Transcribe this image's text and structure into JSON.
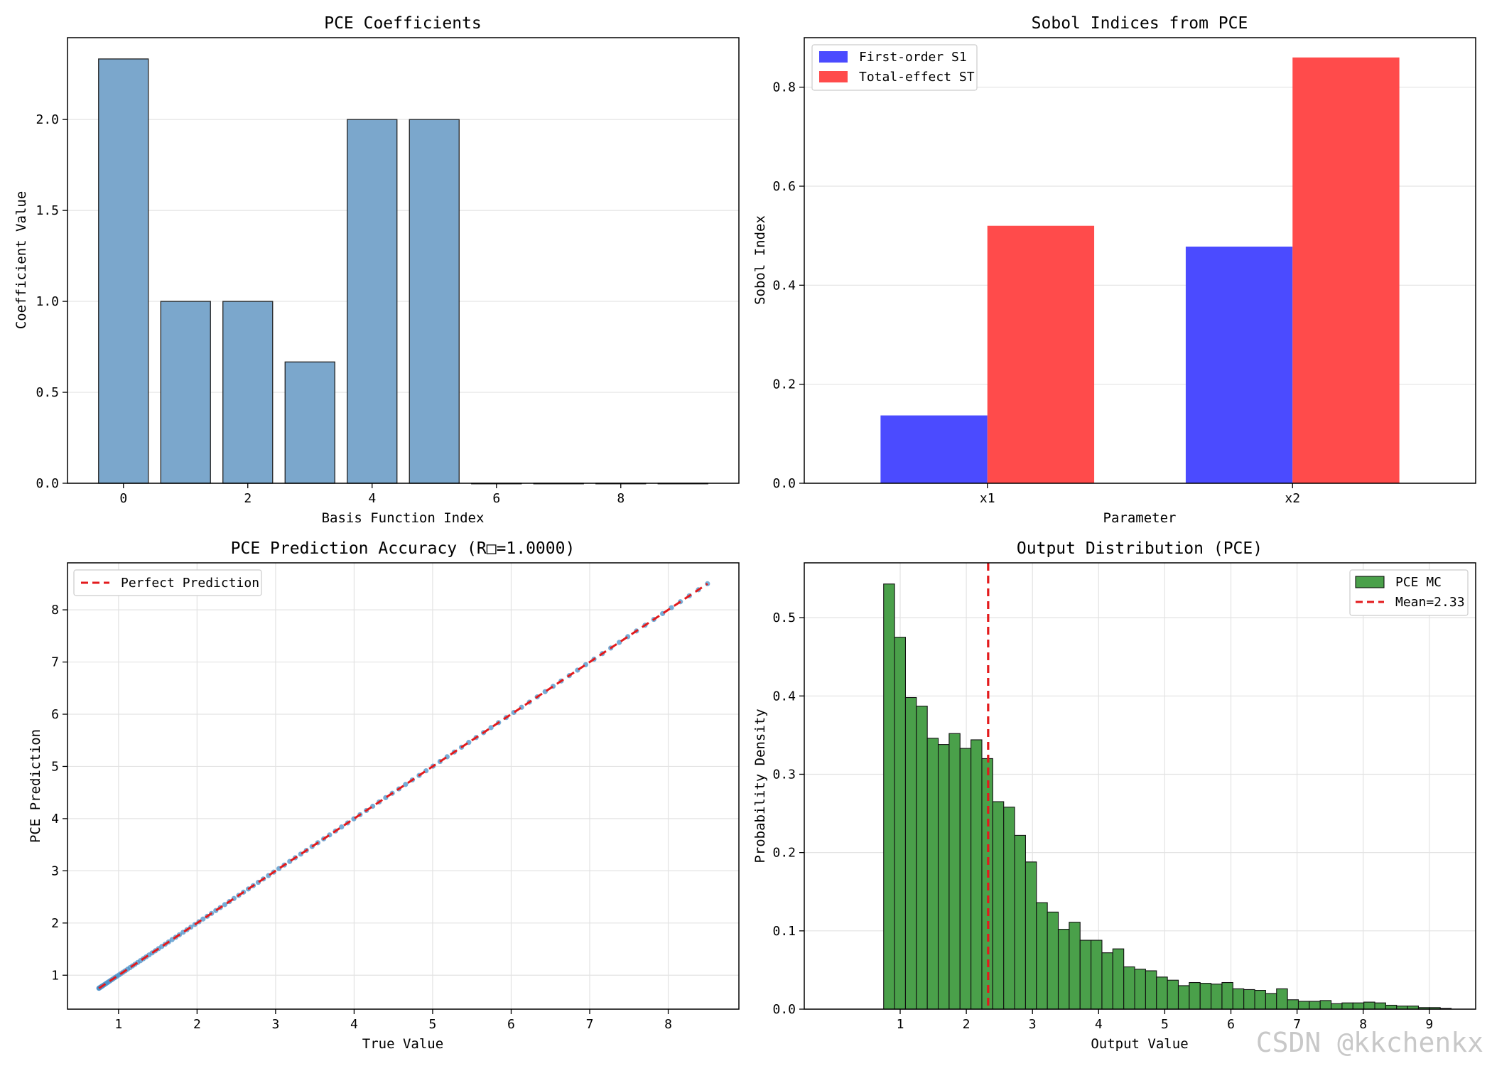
{
  "chart_data": [
    {
      "type": "bar",
      "title": "PCE Coefficients",
      "xlabel": "Basis Function Index",
      "ylabel": "Coefficient Value",
      "categories": [
        0,
        1,
        2,
        3,
        4,
        5,
        6,
        7,
        8,
        9
      ],
      "values": [
        2.333,
        1.0,
        1.0,
        0.667,
        2.0,
        2.0,
        0.0,
        0.0,
        0.0,
        0.0
      ],
      "xlim": [
        -0.9,
        9.9
      ],
      "ylim": [
        0,
        2.45
      ],
      "xticks": [
        0,
        2,
        4,
        6,
        8
      ],
      "yticks": [
        0.0,
        0.5,
        1.0,
        1.5,
        2.0
      ],
      "color": "#7ba7cc",
      "grid": "y"
    },
    {
      "type": "bar",
      "title": "Sobol Indices from PCE",
      "xlabel": "Parameter",
      "ylabel": "Sobol Index",
      "categories": [
        "x1",
        "x2"
      ],
      "series": [
        {
          "name": "First-order S1",
          "values": [
            0.137,
            0.478
          ],
          "color": "#4b4bff"
        },
        {
          "name": "Total-effect ST",
          "values": [
            0.52,
            0.86
          ],
          "color": "#ff4b4b"
        }
      ],
      "ylim": [
        0,
        0.9
      ],
      "yticks": [
        0.0,
        0.2,
        0.4,
        0.6,
        0.8
      ],
      "legend": "upper-left",
      "grid": "y"
    },
    {
      "type": "scatter",
      "title": "PCE Prediction Accuracy (R□=1.0000)",
      "xlabel": "True Value",
      "ylabel": "PCE Prediction",
      "x_range": [
        0.75,
        8.5
      ],
      "xlim": [
        0.35,
        8.9
      ],
      "ylim": [
        0.35,
        8.9
      ],
      "xticks": [
        1,
        2,
        3,
        4,
        5,
        6,
        7,
        8
      ],
      "yticks": [
        1,
        2,
        3,
        4,
        5,
        6,
        7,
        8
      ],
      "points_color": "#4a90c8",
      "reference_line": {
        "name": "Perfect Prediction",
        "from": [
          0.75,
          0.75
        ],
        "to": [
          8.5,
          8.5
        ],
        "color": "#e31a1c"
      },
      "legend": "upper-left",
      "grid": "both"
    },
    {
      "type": "histogram",
      "title": "Output Distribution (PCE)",
      "xlabel": "Output Value",
      "ylabel": "Probability Density",
      "bin_start": 0.75,
      "bin_width": 0.165,
      "values": [
        0.543,
        0.475,
        0.398,
        0.387,
        0.346,
        0.338,
        0.352,
        0.333,
        0.344,
        0.32,
        0.265,
        0.258,
        0.222,
        0.188,
        0.136,
        0.124,
        0.102,
        0.111,
        0.088,
        0.088,
        0.072,
        0.077,
        0.054,
        0.051,
        0.049,
        0.041,
        0.037,
        0.03,
        0.034,
        0.033,
        0.032,
        0.034,
        0.026,
        0.025,
        0.024,
        0.02,
        0.026,
        0.012,
        0.01,
        0.01,
        0.011,
        0.007,
        0.008,
        0.008,
        0.009,
        0.008,
        0.005,
        0.004,
        0.004,
        0.002,
        0.002,
        0.001
      ],
      "xlim": [
        -0.45,
        9.7
      ],
      "ylim": [
        0,
        0.57
      ],
      "xticks": [
        1,
        2,
        3,
        4,
        5,
        6,
        7,
        8,
        9
      ],
      "yticks": [
        0.0,
        0.1,
        0.2,
        0.3,
        0.4,
        0.5
      ],
      "bar_color": "#4aa04a",
      "series_name": "PCE MC",
      "mean_line": {
        "value": 2.33,
        "label": "Mean=2.33",
        "color": "#e31a1c"
      },
      "legend": "upper-right",
      "grid": "both"
    }
  ],
  "watermark": "CSDN @kkchenkx"
}
